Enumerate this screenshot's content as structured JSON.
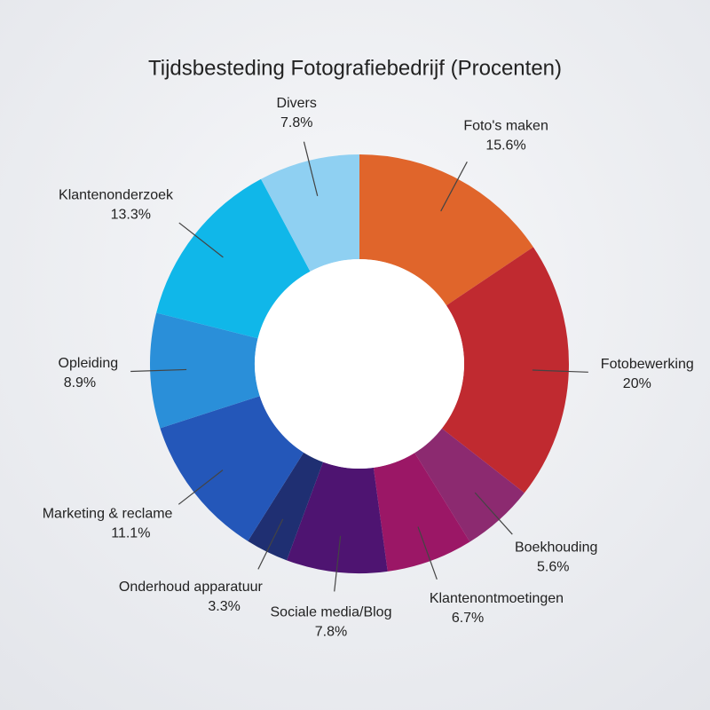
{
  "chart_data": {
    "type": "donut",
    "title": "Tijdsbesteding Fotografiebedrijf (Procenten)",
    "categories": [
      "Foto's maken",
      "Fotobewerking",
      "Boekhouding",
      "Klantenontmoetingen",
      "Sociale media/Blog",
      "Onderhoud apparatuur",
      "Marketing & reclame",
      "Opleiding",
      "Klantenonderzoek",
      "Divers"
    ],
    "values": [
      15.6,
      20,
      5.6,
      6.7,
      7.8,
      3.3,
      11.1,
      8.9,
      13.3,
      7.8
    ],
    "value_labels": [
      "15.6%",
      "20%",
      "5.6%",
      "6.7%",
      "7.8%",
      "3.3%",
      "11.1%",
      "8.9%",
      "13.3%",
      "7.8%"
    ],
    "colors": [
      "#e0652b",
      "#c02a30",
      "#8c2a70",
      "#9b1766",
      "#4e1471",
      "#1f2f72",
      "#2457b9",
      "#2a8fd9",
      "#10b7e9",
      "#8fd0f2"
    ]
  }
}
